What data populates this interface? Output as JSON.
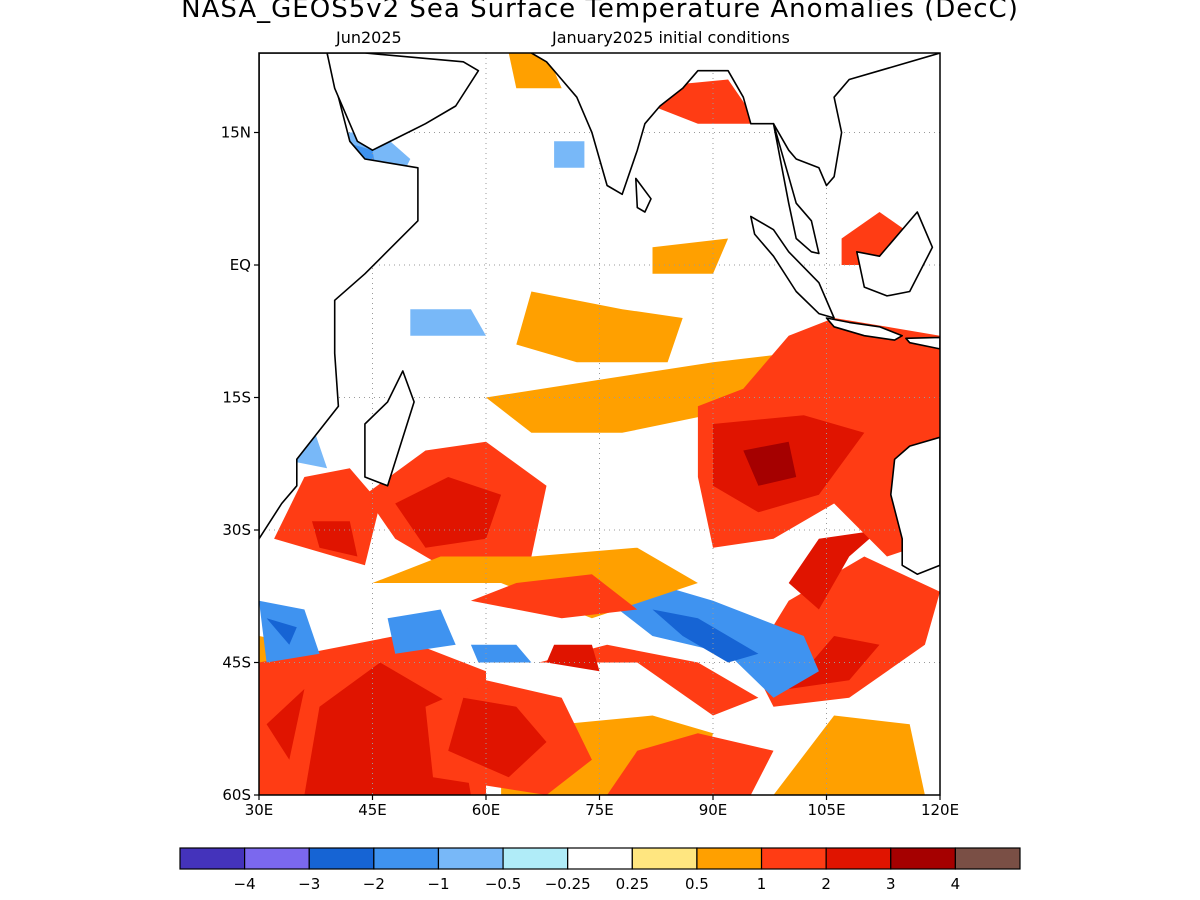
{
  "title": "NASA_GEOS5v2 Sea Surface Temperature Anomalies (DecC)",
  "subtitle_left": "Jun2025",
  "subtitle_right": "January2025 initial conditions",
  "map": {
    "lon_range": [
      30,
      120
    ],
    "lat_range": [
      -60,
      24
    ],
    "lon_ticks": [
      {
        "value": 30,
        "label": "30E"
      },
      {
        "value": 45,
        "label": "45E"
      },
      {
        "value": 60,
        "label": "60E"
      },
      {
        "value": 75,
        "label": "75E"
      },
      {
        "value": 90,
        "label": "90E"
      },
      {
        "value": 105,
        "label": "105E"
      },
      {
        "value": 120,
        "label": "120E"
      }
    ],
    "lat_ticks": [
      {
        "value": 15,
        "label": "15N"
      },
      {
        "value": 0,
        "label": "EQ"
      },
      {
        "value": -15,
        "label": "15S"
      },
      {
        "value": -30,
        "label": "30S"
      },
      {
        "value": -45,
        "label": "45S"
      },
      {
        "value": -60,
        "label": "60S"
      }
    ],
    "grid": true,
    "land_color": "#ffffff",
    "anomaly_regions": [
      {
        "level": "0.5",
        "pts": [
          [
            30,
            -58
          ],
          [
            33,
            -54
          ],
          [
            32,
            -48
          ],
          [
            36,
            -43
          ],
          [
            30,
            -42
          ]
        ]
      },
      {
        "level": "1",
        "pts": [
          [
            30,
            -60
          ],
          [
            60,
            -60
          ],
          [
            60,
            -46
          ],
          [
            48,
            -42
          ],
          [
            36,
            -44
          ],
          [
            30,
            -45
          ]
        ]
      },
      {
        "level": "2",
        "pts": [
          [
            36,
            -60
          ],
          [
            58,
            -60
          ],
          [
            56,
            -50
          ],
          [
            46,
            -45
          ],
          [
            38,
            -50
          ]
        ]
      },
      {
        "level": "2",
        "pts": [
          [
            31,
            -52
          ],
          [
            36,
            -48
          ],
          [
            34,
            -56
          ]
        ]
      },
      {
        "level": "0.5",
        "pts": [
          [
            62,
            -60
          ],
          [
            88,
            -60
          ],
          [
            90,
            -53
          ],
          [
            82,
            -51
          ],
          [
            70,
            -52
          ],
          [
            62,
            -54
          ]
        ]
      },
      {
        "level": "1",
        "pts": [
          [
            53,
            -58
          ],
          [
            68,
            -60
          ],
          [
            74,
            -56
          ],
          [
            70,
            -49
          ],
          [
            60,
            -47
          ],
          [
            52,
            -50
          ]
        ]
      },
      {
        "level": "2",
        "pts": [
          [
            55,
            -55
          ],
          [
            63,
            -58
          ],
          [
            68,
            -54
          ],
          [
            64,
            -50
          ],
          [
            57,
            -49
          ]
        ]
      },
      {
        "level": "1",
        "pts": [
          [
            67,
            -45
          ],
          [
            80,
            -45
          ],
          [
            90,
            -51
          ],
          [
            96,
            -49
          ],
          [
            88,
            -45
          ],
          [
            76,
            -43
          ]
        ]
      },
      {
        "level": "2",
        "pts": [
          [
            68,
            -45
          ],
          [
            75,
            -46
          ],
          [
            74,
            -43
          ],
          [
            69,
            -43
          ]
        ]
      },
      {
        "level": "1",
        "pts": [
          [
            76,
            -60
          ],
          [
            95,
            -60
          ],
          [
            98,
            -55
          ],
          [
            88,
            -53
          ],
          [
            80,
            -55
          ]
        ]
      },
      {
        "level": "1",
        "pts": [
          [
            98,
            -50
          ],
          [
            108,
            -49
          ],
          [
            118,
            -43
          ],
          [
            120,
            -37
          ],
          [
            110,
            -33
          ],
          [
            100,
            -38
          ],
          [
            95,
            -45
          ]
        ]
      },
      {
        "level": "2",
        "pts": [
          [
            100,
            -48
          ],
          [
            108,
            -47
          ],
          [
            112,
            -43
          ],
          [
            106,
            -42
          ]
        ]
      },
      {
        "level": "2",
        "pts": [
          [
            104,
            -39
          ],
          [
            108,
            -33
          ],
          [
            112,
            -30
          ],
          [
            104,
            -31
          ],
          [
            100,
            -36
          ]
        ]
      },
      {
        "level": "0.5",
        "pts": [
          [
            98,
            -60
          ],
          [
            118,
            -60
          ],
          [
            116,
            -52
          ],
          [
            106,
            -51
          ]
        ]
      },
      {
        "level": "-1",
        "pts": [
          [
            76,
            -38
          ],
          [
            82,
            -36
          ],
          [
            90,
            -38
          ],
          [
            102,
            -42
          ],
          [
            104,
            -46
          ],
          [
            98,
            -49
          ],
          [
            92,
            -44
          ],
          [
            82,
            -42
          ]
        ]
      },
      {
        "level": "-2",
        "pts": [
          [
            82,
            -39
          ],
          [
            88,
            -40
          ],
          [
            96,
            -44
          ],
          [
            92,
            -45
          ],
          [
            86,
            -42
          ]
        ]
      },
      {
        "level": "-1",
        "pts": [
          [
            30,
            -38
          ],
          [
            36,
            -39
          ],
          [
            38,
            -44
          ],
          [
            31,
            -45
          ]
        ]
      },
      {
        "level": "-2",
        "pts": [
          [
            31,
            -40
          ],
          [
            35,
            -41
          ],
          [
            34,
            -43
          ]
        ]
      },
      {
        "level": "-1",
        "pts": [
          [
            47,
            -40
          ],
          [
            54,
            -39
          ],
          [
            56,
            -43
          ],
          [
            48,
            -44
          ]
        ]
      },
      {
        "level": "-1",
        "pts": [
          [
            58,
            -43
          ],
          [
            64,
            -43
          ],
          [
            66,
            -45
          ],
          [
            59,
            -45
          ]
        ]
      },
      {
        "level": "1",
        "pts": [
          [
            32,
            -31
          ],
          [
            44,
            -34
          ],
          [
            46,
            -27
          ],
          [
            42,
            -23
          ],
          [
            36,
            -24
          ]
        ]
      },
      {
        "level": "2",
        "pts": [
          [
            38,
            -32
          ],
          [
            43,
            -33
          ],
          [
            42,
            -29
          ],
          [
            37,
            -29
          ]
        ]
      },
      {
        "level": "1",
        "pts": [
          [
            44,
            -26
          ],
          [
            52,
            -21
          ],
          [
            60,
            -20
          ],
          [
            68,
            -25
          ],
          [
            66,
            -33
          ],
          [
            56,
            -35
          ],
          [
            48,
            -31
          ]
        ]
      },
      {
        "level": "2",
        "pts": [
          [
            48,
            -27
          ],
          [
            55,
            -24
          ],
          [
            62,
            -26
          ],
          [
            60,
            -31
          ],
          [
            52,
            -32
          ]
        ]
      },
      {
        "level": "0.5",
        "pts": [
          [
            45,
            -36
          ],
          [
            62,
            -36
          ],
          [
            74,
            -40
          ],
          [
            88,
            -36
          ],
          [
            80,
            -32
          ],
          [
            66,
            -33
          ],
          [
            54,
            -33
          ]
        ]
      },
      {
        "level": "1",
        "pts": [
          [
            58,
            -38
          ],
          [
            70,
            -40
          ],
          [
            80,
            -39
          ],
          [
            74,
            -35
          ],
          [
            64,
            -36
          ]
        ]
      },
      {
        "level": "0.5",
        "pts": [
          [
            60,
            -15
          ],
          [
            75,
            -13
          ],
          [
            90,
            -11
          ],
          [
            100,
            -10
          ],
          [
            95,
            -16
          ],
          [
            78,
            -19
          ],
          [
            66,
            -19
          ]
        ]
      },
      {
        "level": "1",
        "pts": [
          [
            88,
            -16
          ],
          [
            94,
            -14
          ],
          [
            100,
            -8
          ],
          [
            106,
            -6
          ],
          [
            113,
            -7
          ],
          [
            120,
            -8
          ],
          [
            120,
            -31
          ],
          [
            113,
            -33
          ],
          [
            106,
            -27
          ],
          [
            98,
            -31
          ],
          [
            90,
            -32
          ],
          [
            88,
            -24
          ]
        ]
      },
      {
        "level": "2",
        "pts": [
          [
            90,
            -18
          ],
          [
            102,
            -17
          ],
          [
            110,
            -19
          ],
          [
            104,
            -26
          ],
          [
            96,
            -28
          ],
          [
            90,
            -25
          ]
        ]
      },
      {
        "level": "3",
        "pts": [
          [
            94,
            -21
          ],
          [
            100,
            -20
          ],
          [
            101,
            -24
          ],
          [
            96,
            -25
          ]
        ]
      },
      {
        "level": "0.5",
        "pts": [
          [
            66,
            -3
          ],
          [
            78,
            -5
          ],
          [
            86,
            -6
          ],
          [
            84,
            -11
          ],
          [
            72,
            -11
          ],
          [
            64,
            -9
          ]
        ]
      },
      {
        "level": "0.5",
        "pts": [
          [
            82,
            2
          ],
          [
            92,
            3
          ],
          [
            90,
            -1
          ],
          [
            82,
            -1
          ]
        ]
      },
      {
        "level": "1",
        "pts": [
          [
            80,
            20
          ],
          [
            92,
            21
          ],
          [
            96,
            16
          ],
          [
            88,
            16
          ],
          [
            82,
            18
          ]
        ]
      },
      {
        "level": "0.5",
        "pts": [
          [
            63,
            24
          ],
          [
            68,
            24
          ],
          [
            70,
            20
          ],
          [
            64,
            20
          ]
        ]
      },
      {
        "level": "1",
        "pts": [
          [
            107,
            3
          ],
          [
            112,
            6
          ],
          [
            117,
            3
          ],
          [
            113,
            0
          ],
          [
            107,
            0
          ]
        ]
      },
      {
        "level": "-0.5",
        "pts": [
          [
            40,
            15
          ],
          [
            46,
            15
          ],
          [
            50,
            12
          ],
          [
            46,
            5
          ],
          [
            40,
            4
          ],
          [
            38,
            10
          ]
        ]
      },
      {
        "level": "-1",
        "pts": [
          [
            41,
            14
          ],
          [
            45,
            13
          ],
          [
            46,
            8
          ],
          [
            41,
            7
          ],
          [
            40,
            11
          ]
        ]
      },
      {
        "level": "-0.5",
        "pts": [
          [
            50,
            -5
          ],
          [
            58,
            -5
          ],
          [
            60,
            -8
          ],
          [
            50,
            -8
          ]
        ]
      },
      {
        "level": "-0.5",
        "pts": [
          [
            69,
            14
          ],
          [
            73,
            14
          ],
          [
            73,
            11
          ],
          [
            69,
            11
          ]
        ]
      },
      {
        "level": "-0.5",
        "pts": [
          [
            33,
            -19
          ],
          [
            37,
            -18
          ],
          [
            39,
            -23
          ],
          [
            33,
            -22
          ]
        ]
      }
    ]
  },
  "colorbar": {
    "colors": [
      "#4433bb",
      "#7b68ee",
      "#1664d4",
      "#3f93f0",
      "#78b8f8",
      "#b0ecf8",
      "#ffffff",
      "#ffe680",
      "#ffa000",
      "#ff3c14",
      "#e01400",
      "#a50000",
      "#7a4f45"
    ],
    "labels": [
      "−4",
      "−3",
      "−2",
      "−1",
      "−0.5",
      "−0.25",
      "0.25",
      "0.5",
      "1",
      "2",
      "3",
      "4"
    ]
  }
}
